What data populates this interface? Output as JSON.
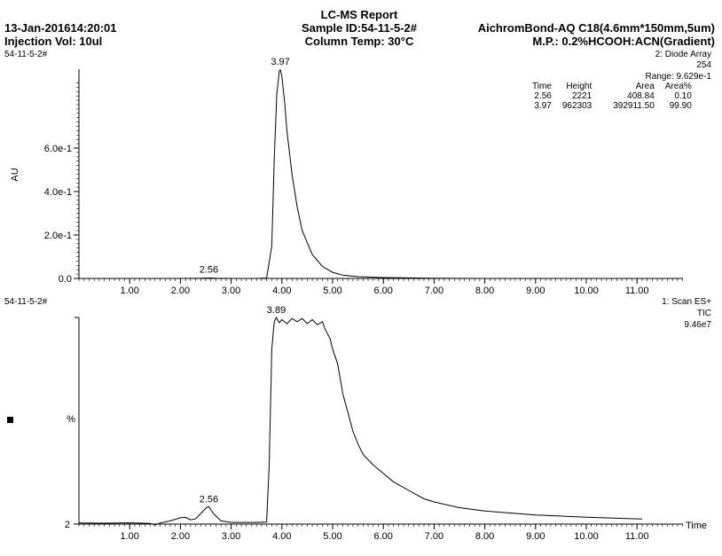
{
  "header": {
    "date": "13-Jan-201614:20:01",
    "injection": "Injection Vol: 10ul",
    "title": "LC-MS Report",
    "sample": "Sample ID:54-11-5-2#",
    "column_temp": "Column Temp: 30°C",
    "column": "AichromBond-AQ C18(4.6mm*150mm,5um)",
    "mobile_phase": "M.P.: 0.2%HCOOH:ACN(Gradient)"
  },
  "top_panel": {
    "sample_label": "54-11-5-2#",
    "detector": "2: Diode Array",
    "wavelength": "254",
    "range": "Range: 9.629e-1",
    "ylabel": "AU",
    "table": {
      "headers": [
        "Time",
        "Height",
        "Area",
        "Area%"
      ],
      "rows": [
        [
          "2.56",
          "2221",
          "408.84",
          "0.10"
        ],
        [
          "3.97",
          "962303",
          "392911.50",
          "99.90"
        ]
      ]
    }
  },
  "bottom_panel": {
    "sample_label": "54-11-5-2#",
    "detector": "1: Scan ES+",
    "trace": "TIC",
    "max": "9.46e7",
    "ylabel": "%",
    "xlabel": "Time"
  },
  "chart_data": [
    {
      "type": "line",
      "title": "2: Diode Array 254",
      "ylabel": "AU",
      "xlim": [
        0,
        12.1
      ],
      "ylim": [
        0,
        0.9629
      ],
      "xticks": [
        "1.00",
        "2.00",
        "3.00",
        "4.00",
        "5.00",
        "6.00",
        "7.00",
        "8.00",
        "9.00",
        "10.00",
        "11.00"
      ],
      "yticks": [
        {
          "value": 0.0,
          "label": "0.0"
        },
        {
          "value": 0.2,
          "label": "2.0e-1"
        },
        {
          "value": 0.4,
          "label": "4.0e-1"
        },
        {
          "value": 0.6,
          "label": "6.0e-1"
        }
      ],
      "peak_labels": [
        {
          "x": 2.56,
          "y": 0.002,
          "label": "2.56"
        },
        {
          "x": 3.97,
          "y": 0.96,
          "label": "3.97"
        }
      ],
      "x": [
        0.0,
        1.0,
        2.0,
        2.4,
        2.56,
        2.7,
        3.0,
        3.5,
        3.7,
        3.8,
        3.85,
        3.9,
        3.95,
        3.97,
        4.0,
        4.05,
        4.1,
        4.2,
        4.3,
        4.4,
        4.6,
        4.8,
        5.0,
        5.2,
        5.5,
        6.0,
        7.0,
        8.0,
        9.0,
        10.0,
        11.0,
        11.4
      ],
      "y": [
        0.0,
        0.0,
        0.0,
        0.001,
        0.002,
        0.001,
        0.0,
        0.0,
        0.002,
        0.15,
        0.55,
        0.85,
        0.955,
        0.96,
        0.93,
        0.82,
        0.68,
        0.48,
        0.33,
        0.22,
        0.11,
        0.055,
        0.028,
        0.015,
        0.008,
        0.004,
        0.001,
        0.0,
        0.0,
        0.0,
        0.0,
        0.0
      ]
    },
    {
      "type": "line",
      "title": "1: Scan ES+ TIC 9.46e7",
      "ylabel": "%",
      "xlabel": "Time",
      "xlim": [
        0,
        12.1
      ],
      "ylim": [
        2,
        100
      ],
      "xticks": [
        "1.00",
        "2.00",
        "3.00",
        "4.00",
        "5.00",
        "6.00",
        "7.00",
        "8.00",
        "9.00",
        "10.00",
        "11.00"
      ],
      "yticks": [
        {
          "value": 2,
          "label": "2"
        }
      ],
      "peak_labels": [
        {
          "x": 2.56,
          "y": 10.3,
          "label": "2.56"
        },
        {
          "x": 3.89,
          "y": 100,
          "label": "3.89"
        }
      ],
      "x": [
        0.0,
        0.5,
        1.0,
        1.4,
        1.5,
        1.6,
        1.8,
        2.0,
        2.1,
        2.2,
        2.3,
        2.4,
        2.5,
        2.56,
        2.65,
        2.8,
        3.0,
        3.5,
        3.7,
        3.75,
        3.8,
        3.85,
        3.89,
        3.95,
        4.0,
        4.1,
        4.2,
        4.3,
        4.4,
        4.5,
        4.6,
        4.7,
        4.8,
        4.85,
        4.95,
        5.0,
        5.1,
        5.2,
        5.3,
        5.4,
        5.5,
        5.6,
        5.8,
        6.0,
        6.2,
        6.5,
        6.8,
        7.0,
        7.5,
        8.0,
        9.0,
        10.0,
        11.0,
        11.1
      ],
      "y": [
        2.5,
        2.4,
        2.6,
        2.3,
        1.6,
        2.5,
        3.5,
        5.0,
        5.2,
        4.0,
        4.5,
        7.0,
        9.5,
        10.3,
        7.0,
        3.5,
        2.8,
        2.8,
        3.0,
        30.0,
        85.0,
        98.0,
        100.0,
        97.5,
        99.0,
        97.0,
        99.5,
        98.0,
        99.5,
        97.0,
        99.0,
        96.5,
        98.0,
        94.5,
        90.0,
        85.0,
        78.0,
        64.0,
        55.0,
        46.0,
        40.0,
        35.0,
        30.0,
        26.0,
        22.0,
        18.0,
        14.0,
        12.5,
        9.8,
        8.2,
        6.3,
        5.3,
        4.5,
        4.4
      ]
    }
  ]
}
